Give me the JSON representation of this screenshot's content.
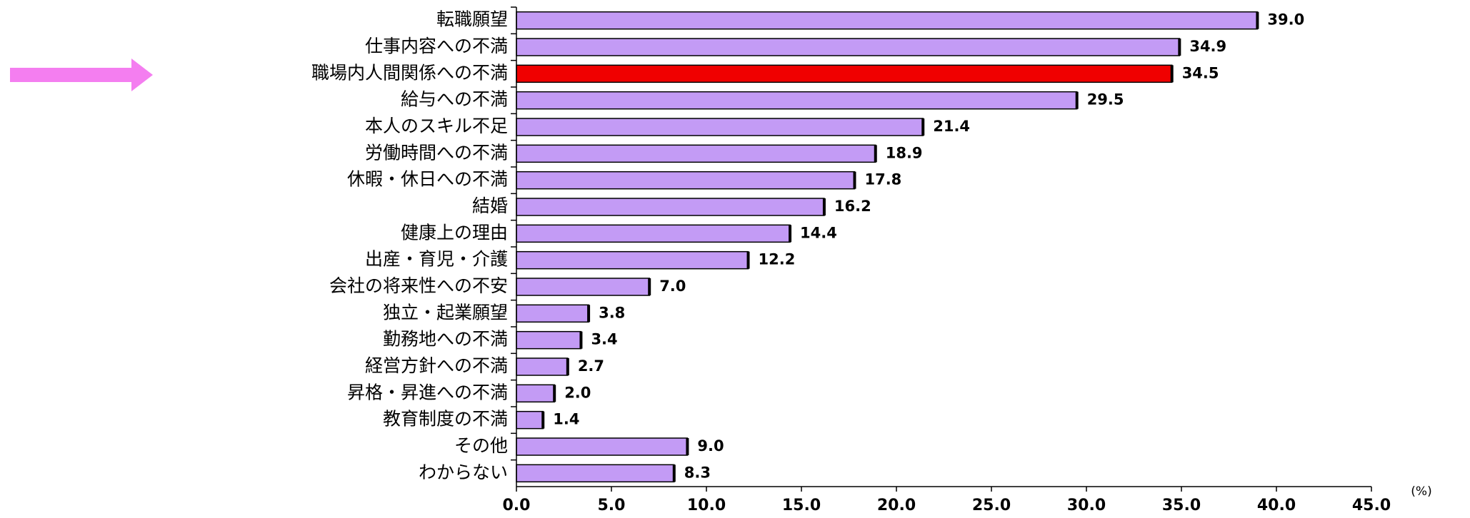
{
  "chart_data": {
    "type": "bar",
    "orientation": "horizontal",
    "categories": [
      "転職願望",
      "仕事内容への不満",
      "職場内人間関係への不満",
      "給与への不満",
      "本人のスキル不足",
      "労働時間への不満",
      "休暇・休日への不満",
      "結婚",
      "健康上の理由",
      "出産・育児・介護",
      "会社の将来性への不安",
      "独立・起業願望",
      "勤務地への不満",
      "経営方針への不満",
      "昇格・昇進への不満",
      "教育制度の不満",
      "その他",
      "わからない"
    ],
    "values": [
      39.0,
      34.9,
      34.5,
      29.5,
      21.4,
      18.9,
      17.8,
      16.2,
      14.4,
      12.2,
      7.0,
      3.8,
      3.4,
      2.7,
      2.0,
      1.4,
      9.0,
      8.3
    ],
    "value_labels": [
      "39.0",
      "34.9",
      "34.5",
      "29.5",
      "21.4",
      "18.9",
      "17.8",
      "16.2",
      "14.4",
      "12.2",
      "7.0",
      "3.8",
      "3.4",
      "2.7",
      "2.0",
      "1.4",
      "9.0",
      "8.3"
    ],
    "highlighted_category": "職場内人間関係への不満",
    "xlim": [
      0,
      45
    ],
    "x_ticks": [
      "0.0",
      "5.0",
      "10.0",
      "15.0",
      "20.0",
      "25.0",
      "30.0",
      "35.0",
      "40.0",
      "45.0"
    ],
    "x_unit": "(%)",
    "grid": false,
    "colors": {
      "bar": "#C39BF5",
      "highlight_bar": "#F00000",
      "bar_edge": "#000000",
      "arrow": "#F47EF0"
    }
  }
}
